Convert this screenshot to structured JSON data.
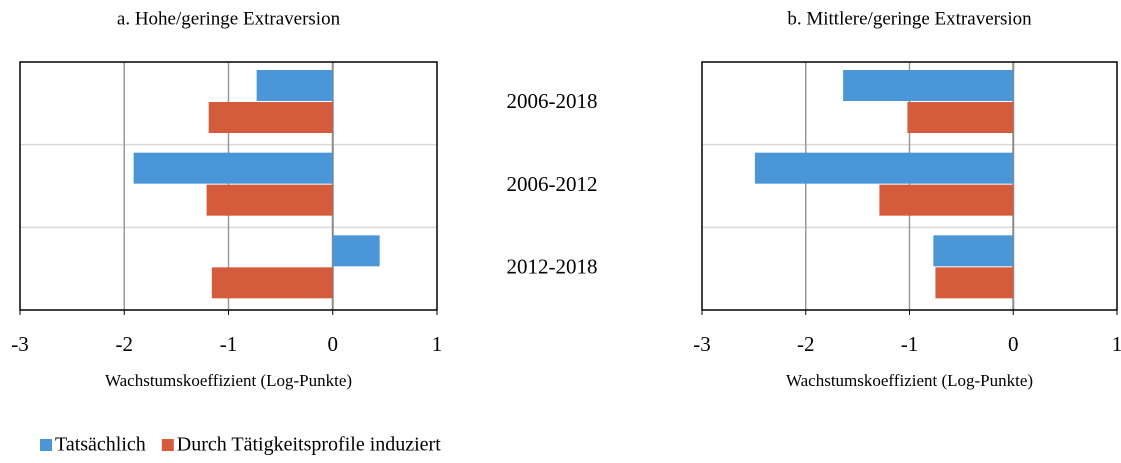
{
  "chart_data": [
    {
      "type": "bar",
      "orientation": "horizontal",
      "title": "a. Hohe/geringe Extraversion",
      "xlabel": "Wachstumskoeffizient (Log-Punkte)",
      "categories": [
        "2006-2018",
        "2006-2012",
        "2012-2018"
      ],
      "series": [
        {
          "name": "Tatsächlich",
          "color": "#4a96d6",
          "values": [
            -0.73,
            -1.91,
            0.45
          ]
        },
        {
          "name": "Durch Tätigkeitsprofile induziert",
          "color": "#d45b3b",
          "values": [
            -1.19,
            -1.21,
            -1.16
          ]
        }
      ],
      "xlim": [
        -3,
        1
      ],
      "xticks": [
        -3,
        -2,
        -1,
        0,
        1
      ],
      "grid": true
    },
    {
      "type": "bar",
      "orientation": "horizontal",
      "title": "b. Mittlere/geringe Extraversion",
      "xlabel": "Wachstumskoeffizient (Log-Punkte)",
      "series": [
        {
          "color": "#4a96d6",
          "values": [
            -1.64,
            -2.49,
            -0.77
          ]
        },
        {
          "color": "#d45b3b",
          "values": [
            -1.02,
            -1.29,
            -0.75
          ]
        }
      ],
      "xlim": [
        -3,
        1
      ],
      "xticks": [
        -3,
        -2,
        -1,
        0,
        1
      ],
      "grid": true
    }
  ]
}
